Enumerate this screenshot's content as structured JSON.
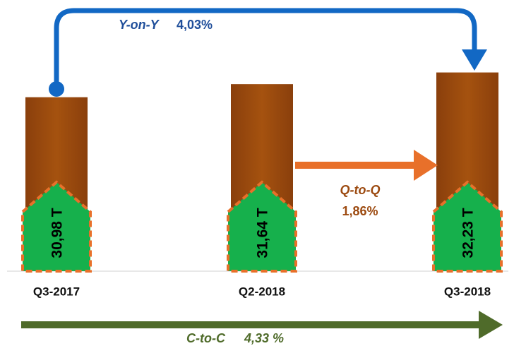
{
  "chart_data": {
    "type": "bar",
    "categories": [
      "Q3-2017",
      "Q2-2018",
      "Q3-2018"
    ],
    "values": [
      30.98,
      31.64,
      32.23
    ],
    "value_labels": [
      "30,98 T",
      "31,64 T",
      "32,23 T"
    ],
    "color": "#9c4a10",
    "ylim": [
      22.2,
      33
    ],
    "annotations": {
      "yoy_label": "Y-on-Y",
      "yoy_value": "4,03%",
      "qoq_label": "Q-to-Q",
      "qoq_value": "1,86%",
      "ctoc_label": "C-to-C",
      "ctoc_value": "4,33 %"
    }
  }
}
